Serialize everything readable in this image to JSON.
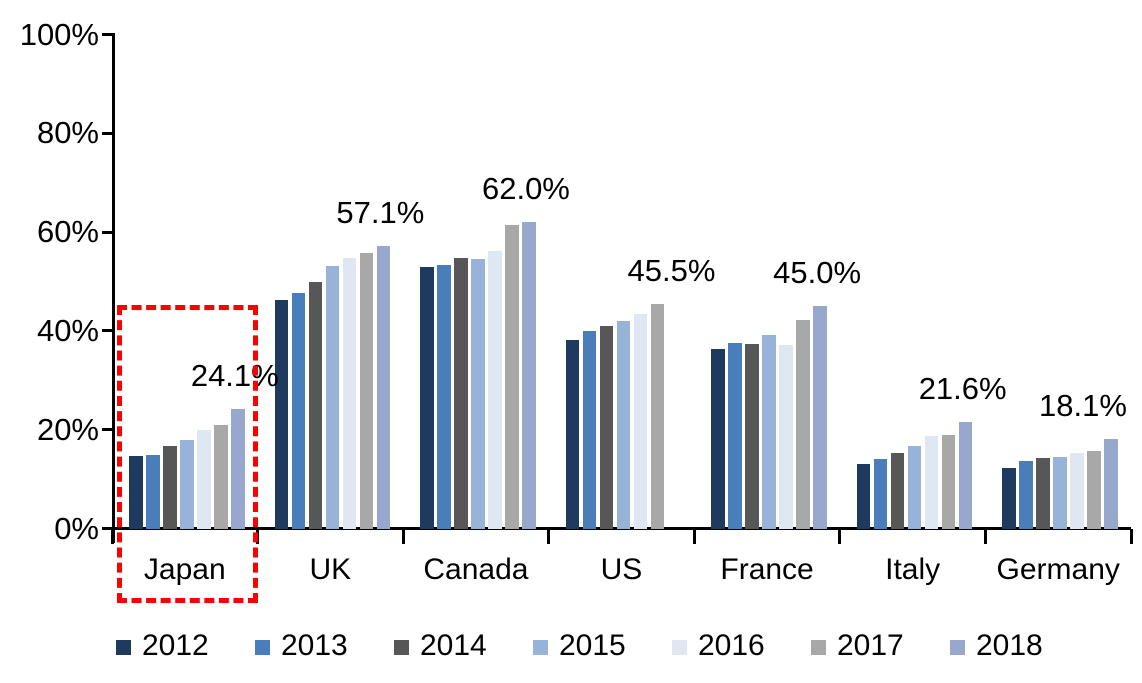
{
  "chart_data": {
    "type": "bar",
    "title": "",
    "xlabel": "",
    "ylabel": "",
    "categories": [
      "Japan",
      "UK",
      "Canada",
      "US",
      "France",
      "Italy",
      "Germany"
    ],
    "series": [
      {
        "name": "2012",
        "color": "#1F3A5F",
        "values": [
          14.7,
          46.2,
          52.9,
          38.1,
          36.4,
          13.0,
          12.3
        ]
      },
      {
        "name": "2013",
        "color": "#4A7EBB",
        "values": [
          14.9,
          47.7,
          53.3,
          39.9,
          37.5,
          14.0,
          13.6
        ]
      },
      {
        "name": "2014",
        "color": "#575757",
        "values": [
          16.7,
          49.9,
          54.7,
          41.0,
          37.4,
          15.2,
          14.3
        ]
      },
      {
        "name": "2015",
        "color": "#97B3D9",
        "values": [
          17.9,
          53.1,
          54.5,
          42.0,
          39.1,
          16.7,
          14.5
        ]
      },
      {
        "name": "2016",
        "color": "#DFE7F2",
        "values": [
          19.9,
          54.8,
          56.1,
          43.4,
          37.1,
          18.7,
          15.2
        ]
      },
      {
        "name": "2017",
        "color": "#A8A8A8",
        "values": [
          21.0,
          55.8,
          61.5,
          45.5,
          42.3,
          19.0,
          15.7
        ]
      },
      {
        "name": "2018",
        "color": "#97A7CE",
        "values": [
          24.1,
          57.1,
          62.0,
          null,
          45.0,
          21.6,
          18.1
        ]
      }
    ],
    "annotations": [
      {
        "category": "Japan",
        "text": "24.1%",
        "value": 24.1,
        "series": "2018"
      },
      {
        "category": "UK",
        "text": "57.1%",
        "value": 57.1,
        "series": "2018"
      },
      {
        "category": "Canada",
        "text": "62.0%",
        "value": 62.0,
        "series": "2018"
      },
      {
        "category": "US",
        "text": "45.5%",
        "value": 45.5,
        "series": "2017"
      },
      {
        "category": "France",
        "text": "45.0%",
        "value": 45.0,
        "series": "2018"
      },
      {
        "category": "Italy",
        "text": "21.6%",
        "value": 21.6,
        "series": "2018"
      },
      {
        "category": "Germany",
        "text": "18.1%",
        "value": 18.1,
        "series": "2018"
      }
    ],
    "y_axis": {
      "min": 0,
      "max": 100,
      "tick_labels": [
        "0%",
        "20%",
        "40%",
        "60%",
        "80%",
        "100%"
      ],
      "tick_values": [
        0,
        20,
        40,
        60,
        80,
        100
      ]
    },
    "legend": {
      "position": "bottom",
      "entries": [
        "2012",
        "2013",
        "2014",
        "2015",
        "2016",
        "2017",
        "2018"
      ]
    },
    "grid": false,
    "highlight": {
      "category": "Japan",
      "color": "#FF0000",
      "style": "dashed"
    }
  }
}
